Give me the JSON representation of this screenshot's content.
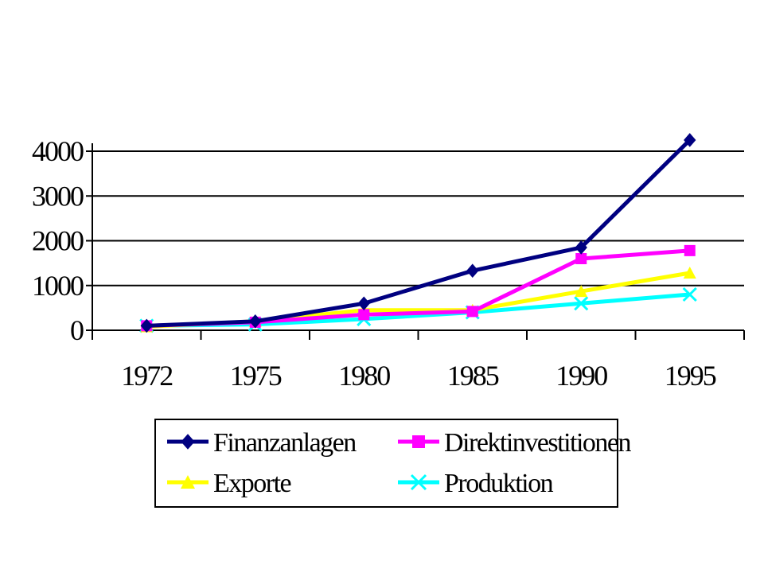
{
  "chart_data": {
    "type": "line",
    "categories": [
      "1972",
      "1975",
      "1980",
      "1985",
      "1990",
      "1995"
    ],
    "ylim": [
      0,
      4000
    ],
    "yticks": [
      0,
      1000,
      2000,
      3000,
      4000
    ],
    "ytick_labels": [
      "0",
      "1000",
      "2000",
      "3000",
      "4000"
    ],
    "grid": true,
    "legend_position": "bottom-center",
    "series": [
      {
        "name": "Finanzanlagen",
        "values": [
          100,
          200,
          600,
          1330,
          1850,
          4250
        ],
        "color": "#000080",
        "marker": "diamond"
      },
      {
        "name": "Direktinvestitionen",
        "values": [
          100,
          180,
          350,
          420,
          1600,
          1780
        ],
        "color": "#ff00ff",
        "marker": "square"
      },
      {
        "name": "Exporte",
        "values": [
          80,
          200,
          450,
          450,
          870,
          1280
        ],
        "color": "#ffff00",
        "marker": "triangle"
      },
      {
        "name": "Produktion",
        "values": [
          100,
          130,
          250,
          400,
          600,
          800
        ],
        "color": "#00ffff",
        "marker": "x"
      }
    ]
  }
}
